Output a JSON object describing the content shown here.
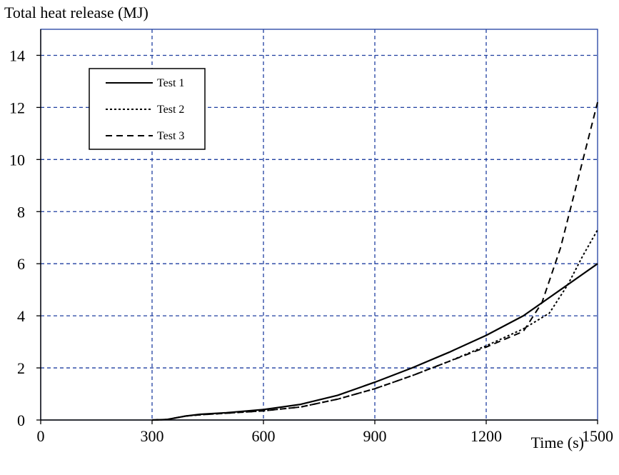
{
  "chart_data": {
    "type": "line",
    "title": "",
    "ylabel": "Total heat release (MJ)",
    "xlabel": "Time (s)",
    "xlim": [
      0,
      1500
    ],
    "ylim": [
      0,
      15
    ],
    "x_ticks": [
      0,
      300,
      600,
      900,
      1200,
      1500
    ],
    "x_tick_labels": [
      "0",
      "300",
      "600",
      "900",
      "1200",
      "1500"
    ],
    "y_ticks": [
      0,
      2,
      4,
      6,
      8,
      10,
      12,
      14
    ],
    "y_tick_labels": [
      "0",
      "2",
      "4",
      "6",
      "8",
      "10",
      "12",
      "14"
    ],
    "grid": true,
    "grid_color": "#1f3fa0",
    "line_color": "#000000",
    "legend_position": "top-left",
    "series": [
      {
        "name": "Test 1",
        "style": "solid",
        "x": [
          300,
          340,
          390,
          430,
          500,
          600,
          700,
          800,
          900,
          1000,
          1100,
          1200,
          1300,
          1400,
          1500
        ],
        "y": [
          0,
          0.02,
          0.15,
          0.22,
          0.28,
          0.4,
          0.6,
          0.95,
          1.45,
          2.0,
          2.6,
          3.25,
          4.0,
          5.0,
          6.0
        ]
      },
      {
        "name": "Test 2",
        "style": "dotted",
        "x": [
          300,
          340,
          390,
          430,
          500,
          600,
          700,
          800,
          900,
          1000,
          1100,
          1200,
          1300,
          1370,
          1420,
          1460,
          1500
        ],
        "y": [
          0,
          0.02,
          0.15,
          0.2,
          0.26,
          0.35,
          0.5,
          0.8,
          1.2,
          1.7,
          2.25,
          2.85,
          3.5,
          4.1,
          5.2,
          6.3,
          7.3
        ]
      },
      {
        "name": "Test 3",
        "style": "dashed",
        "x": [
          300,
          340,
          390,
          430,
          500,
          600,
          700,
          800,
          900,
          1000,
          1100,
          1200,
          1300,
          1350,
          1400,
          1450,
          1500
        ],
        "y": [
          0,
          0.02,
          0.15,
          0.2,
          0.26,
          0.35,
          0.5,
          0.8,
          1.2,
          1.7,
          2.25,
          2.8,
          3.4,
          4.5,
          6.6,
          9.4,
          12.2
        ]
      }
    ]
  }
}
